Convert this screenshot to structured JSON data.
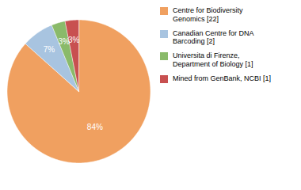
{
  "chart_data": {
    "type": "pie",
    "categories": [
      "Centre for Biodiversity\nGenomics [22]",
      "Canadian Centre for DNA\nBarcoding [2]",
      "Universita di Firenze,\nDepartment of Biology [1]",
      "Mined from GenBank, NCBI [1]"
    ],
    "values": [
      84,
      7,
      3,
      3
    ],
    "value_labels": [
      "84%",
      "7%",
      "3%",
      "3%"
    ],
    "colors": [
      "#f0a060",
      "#a8c4e0",
      "#8aba6a",
      "#c85050"
    ],
    "data_labels": true,
    "legend": "right"
  }
}
